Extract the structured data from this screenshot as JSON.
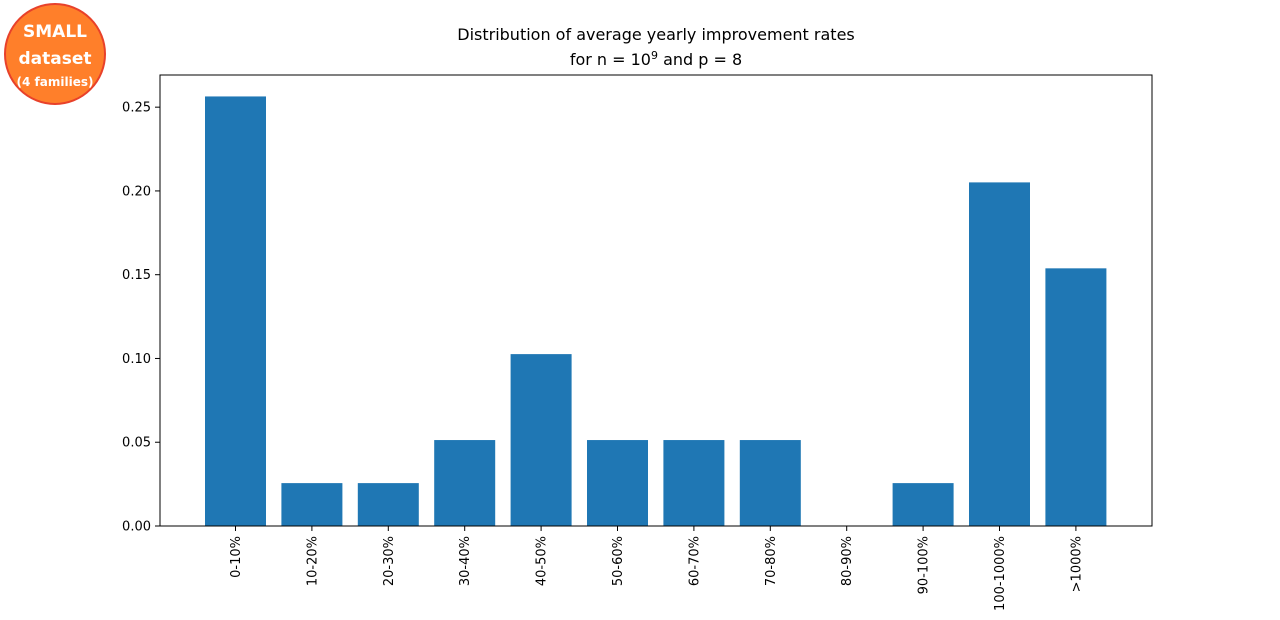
{
  "badge": {
    "line1": "SMALL",
    "line2": "dataset",
    "line3": "(4 families)"
  },
  "chart_data": {
    "type": "bar",
    "title_line1": "Distribution of average yearly improvement rates",
    "title_line2_prefix": "for n = 10",
    "title_line2_sup": "9",
    "title_line2_suffix": " and p = 8",
    "xlabel": "",
    "ylabel": "",
    "categories": [
      "0-10%",
      "10-20%",
      "20-30%",
      "30-40%",
      "40-50%",
      "50-60%",
      "60-70%",
      "70-80%",
      "80-90%",
      "90-100%",
      "100-1000%",
      ">1000%"
    ],
    "values": [
      0.2564,
      0.0256,
      0.0256,
      0.0513,
      0.1026,
      0.0513,
      0.0513,
      0.0513,
      0.0,
      0.0256,
      0.2051,
      0.1538
    ],
    "yticks": [
      "0.00",
      "0.05",
      "0.10",
      "0.15",
      "0.20",
      "0.25"
    ],
    "ylim": [
      0,
      0.2692
    ],
    "bar_color": "#1f77b4",
    "grid": false,
    "legend": "none"
  }
}
